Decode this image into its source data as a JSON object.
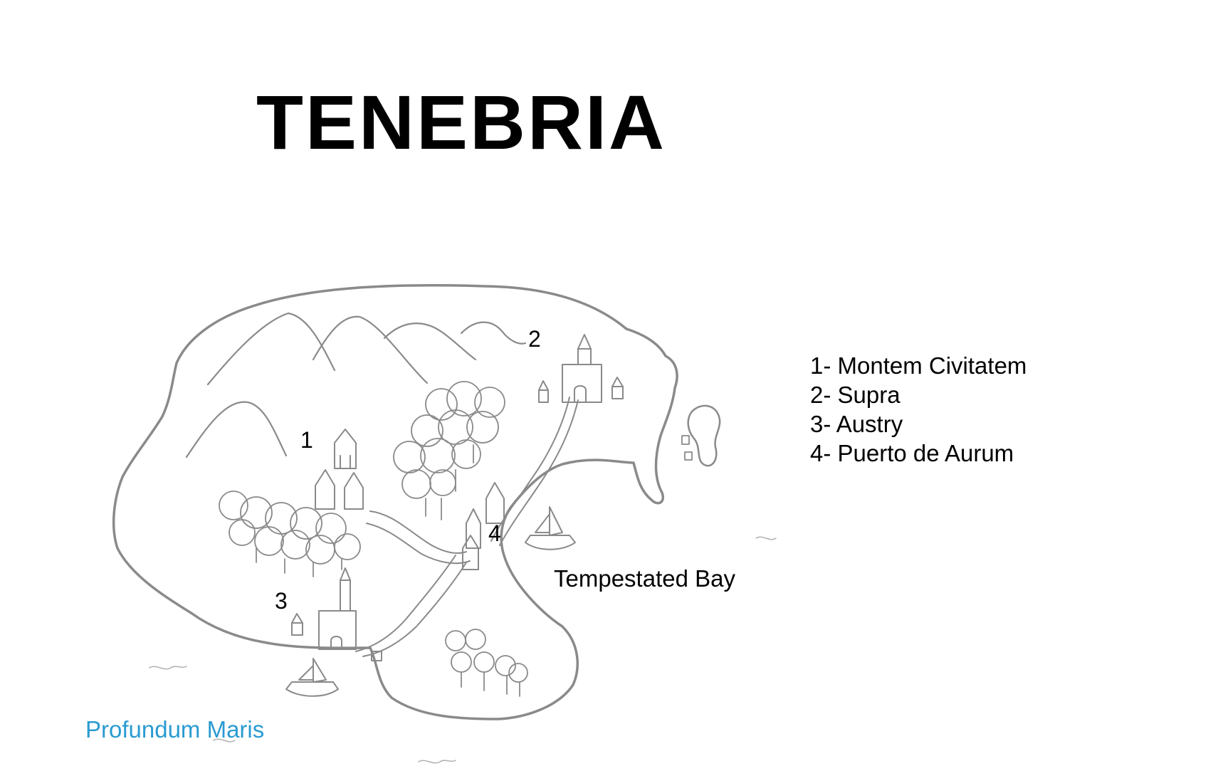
{
  "map": {
    "title": "TENEBRIA",
    "legend": [
      {
        "number": "1",
        "text": "1- Montem Civitatem"
      },
      {
        "number": "2",
        "text": "2- Supra"
      },
      {
        "number": "3",
        "text": "3- Austry"
      },
      {
        "number": "4",
        "text": "4- Puerto de Aurum"
      }
    ],
    "markers": [
      "1",
      "2",
      "3",
      "4"
    ],
    "bay_label": "Tempestated Bay",
    "sea_label": "Profundum Maris",
    "colors": {
      "pencil": "#8a8a8a",
      "title": "#000000",
      "sea_label": "#2a9bd1"
    }
  }
}
